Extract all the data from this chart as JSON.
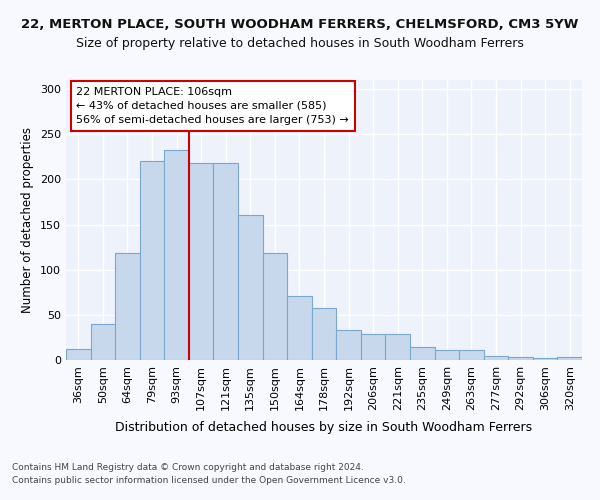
{
  "title1": "22, MERTON PLACE, SOUTH WOODHAM FERRERS, CHELMSFORD, CM3 5YW",
  "title2": "Size of property relative to detached houses in South Woodham Ferrers",
  "xlabel": "Distribution of detached houses by size in South Woodham Ferrers",
  "ylabel": "Number of detached properties",
  "categories": [
    "36sqm",
    "50sqm",
    "64sqm",
    "79sqm",
    "93sqm",
    "107sqm",
    "121sqm",
    "135sqm",
    "150sqm",
    "164sqm",
    "178sqm",
    "192sqm",
    "206sqm",
    "221sqm",
    "235sqm",
    "249sqm",
    "263sqm",
    "277sqm",
    "292sqm",
    "306sqm",
    "320sqm"
  ],
  "values": [
    12,
    40,
    118,
    220,
    233,
    218,
    218,
    160,
    119,
    71,
    58,
    33,
    29,
    29,
    14,
    11,
    11,
    4,
    3,
    2,
    3
  ],
  "bar_color": "#c8d8ec",
  "bar_edge_color": "#7aa8cc",
  "vline_x_idx": 5,
  "vline_color": "#cc0000",
  "annotation_title": "22 MERTON PLACE: 106sqm",
  "annotation_line1": "← 43% of detached houses are smaller (585)",
  "annotation_line2": "56% of semi-detached houses are larger (753) →",
  "annotation_box_color": "#ffffff",
  "annotation_box_edge": "#cc0000",
  "footer1": "Contains HM Land Registry data © Crown copyright and database right 2024.",
  "footer2": "Contains public sector information licensed under the Open Government Licence v3.0.",
  "ylim": [
    0,
    310
  ],
  "yticks": [
    0,
    50,
    100,
    150,
    200,
    250,
    300
  ],
  "bg_color": "#eef2fb",
  "grid_color": "#ffffff",
  "title1_fontsize": 9.5,
  "title2_fontsize": 9,
  "xlabel_fontsize": 9,
  "ylabel_fontsize": 8.5,
  "tick_fontsize": 8,
  "annotation_fontsize": 8,
  "footer_fontsize": 6.5
}
